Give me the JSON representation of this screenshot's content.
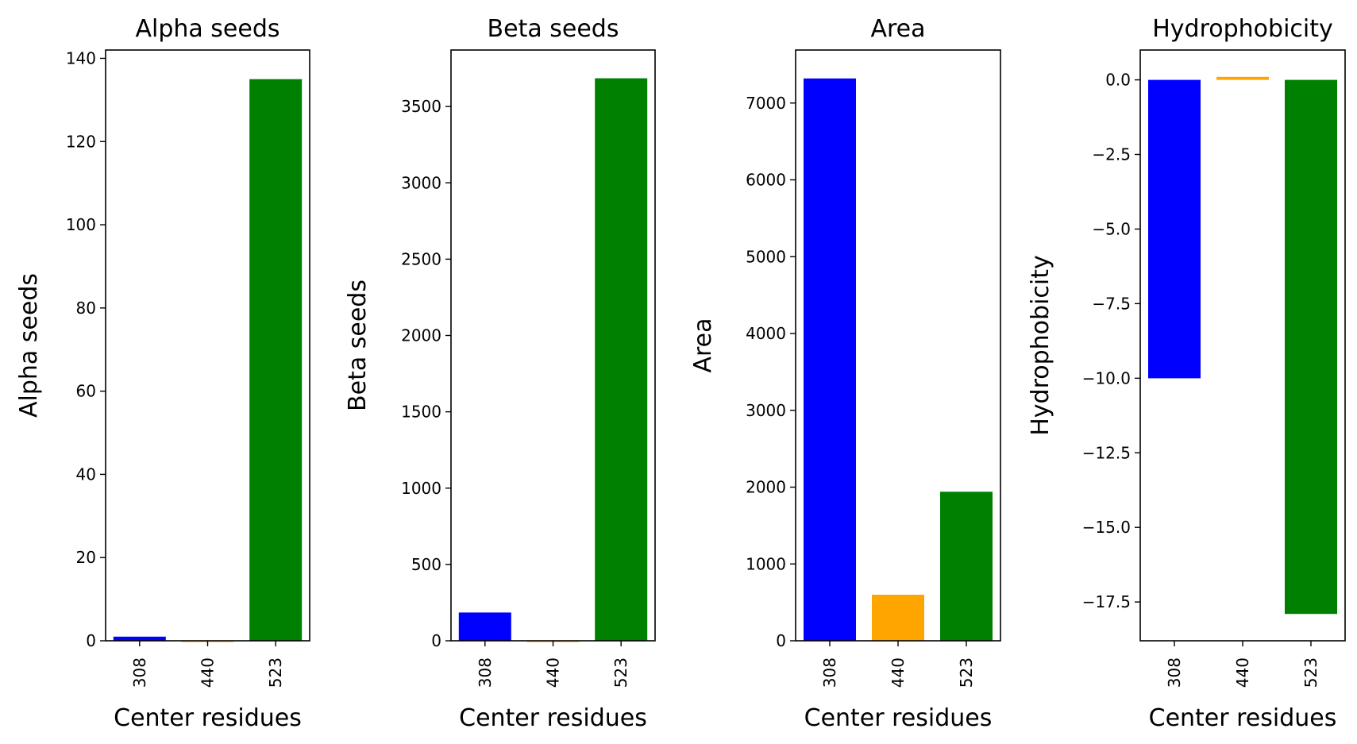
{
  "chart_data": [
    {
      "type": "bar",
      "title": "Alpha seeds",
      "xlabel": "Center residues",
      "ylabel": "Alpha seeds",
      "categories": [
        "308",
        "440",
        "523"
      ],
      "values": [
        1,
        0,
        135
      ],
      "colors": [
        "#0000ff",
        "#ffa500",
        "#008000"
      ],
      "ylim": [
        0,
        142
      ],
      "yticks": [
        0,
        20,
        40,
        60,
        80,
        100,
        120,
        140
      ],
      "ytick_labels": [
        "0",
        "20",
        "40",
        "60",
        "80",
        "100",
        "120",
        "140"
      ],
      "grid": false
    },
    {
      "type": "bar",
      "title": "Beta seeds",
      "xlabel": "Center residues",
      "ylabel": "Beta seeds",
      "categories": [
        "308",
        "440",
        "523"
      ],
      "values": [
        185,
        0,
        3685
      ],
      "colors": [
        "#0000ff",
        "#ffa500",
        "#008000"
      ],
      "ylim": [
        0,
        3870
      ],
      "yticks": [
        0,
        500,
        1000,
        1500,
        2000,
        2500,
        3000,
        3500
      ],
      "ytick_labels": [
        "0",
        "500",
        "1000",
        "1500",
        "2000",
        "2500",
        "3000",
        "3500"
      ],
      "grid": false
    },
    {
      "type": "bar",
      "title": "Area",
      "xlabel": "Center residues",
      "ylabel": "Area",
      "categories": [
        "308",
        "440",
        "523"
      ],
      "values": [
        7320,
        600,
        1940
      ],
      "colors": [
        "#0000ff",
        "#ffa500",
        "#008000"
      ],
      "ylim": [
        0,
        7690
      ],
      "yticks": [
        0,
        1000,
        2000,
        3000,
        4000,
        5000,
        6000,
        7000
      ],
      "ytick_labels": [
        "0",
        "1000",
        "2000",
        "3000",
        "4000",
        "5000",
        "6000",
        "7000"
      ],
      "grid": false
    },
    {
      "type": "bar",
      "title": "Hydrophobicity",
      "xlabel": "Center residues",
      "ylabel": "Hydrophobicity",
      "categories": [
        "308",
        "440",
        "523"
      ],
      "values": [
        -10.0,
        0.1,
        -17.9
      ],
      "colors": [
        "#0000ff",
        "#ffa500",
        "#008000"
      ],
      "ylim": [
        -18.8,
        1.0
      ],
      "yticks": [
        0.0,
        -2.5,
        -5.0,
        -7.5,
        -10.0,
        -12.5,
        -15.0,
        -17.5
      ],
      "ytick_labels": [
        "0.0",
        "−2.5",
        "−5.0",
        "−7.5",
        "−10.0",
        "−12.5",
        "−15.0",
        "−17.5"
      ],
      "grid": false
    }
  ]
}
